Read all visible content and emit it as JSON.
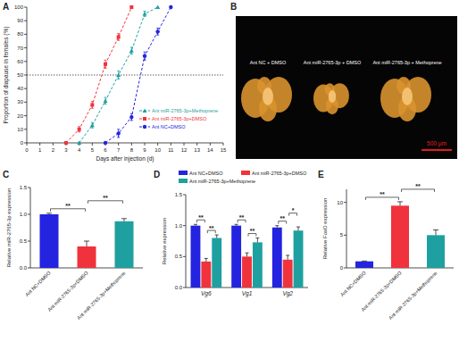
{
  "chart_data": [
    {
      "type": "line",
      "title": "A",
      "x": [
        3,
        4,
        5,
        6,
        7,
        8,
        9,
        10,
        11
      ],
      "xlim": [
        0,
        15
      ],
      "xticks": [
        0,
        1,
        2,
        3,
        4,
        5,
        6,
        7,
        8,
        9,
        10,
        11,
        12,
        13,
        14,
        15
      ],
      "ylim": [
        0,
        100
      ],
      "yticks": [
        0,
        10,
        20,
        30,
        40,
        50,
        60,
        70,
        80,
        90,
        100
      ],
      "x_label": "Days after injection (d)",
      "y_label": "Proportion of diapause in females (%)",
      "hline": 50,
      "legend": "bottom-right",
      "series": [
        {
          "name": "Ant miR-2765-3p+Methoprene",
          "color": "#1fa0a0",
          "marker": "triangle",
          "line_style": "dashed",
          "values": [
            null,
            0,
            13,
            31,
            50,
            68,
            95,
            100,
            null
          ],
          "errors": [
            null,
            0,
            2,
            2.5,
            3,
            2.5,
            2,
            0,
            null
          ]
        },
        {
          "name": "Ant miR-2765-3p+DMSO",
          "color": "#f0323c",
          "marker": "square",
          "line_style": "dashed",
          "values": [
            0,
            10,
            28,
            58,
            78,
            100,
            null,
            null,
            null
          ],
          "errors": [
            0,
            2,
            2.5,
            3,
            2.5,
            0,
            null,
            null,
            null
          ]
        },
        {
          "name": "Ant NC+DMSO",
          "color": "#2323e0",
          "marker": "circle",
          "line_style": "dashed",
          "values": [
            null,
            null,
            null,
            0,
            7,
            19,
            64,
            82,
            100
          ],
          "errors": [
            null,
            null,
            null,
            0,
            3,
            2.5,
            3,
            2.5,
            0
          ]
        }
      ]
    },
    {
      "type": "bar",
      "title": "C",
      "categories": [
        "Ant NC+DMSO",
        "Ant miR-2765-3p+DMSO",
        "Ant miR-2765-3p+Methoprene"
      ],
      "values": [
        1.0,
        0.4,
        0.87
      ],
      "errors": [
        0.02,
        0.1,
        0.05
      ],
      "colors": [
        "#2323e0",
        "#f0323c",
        "#1fa0a0"
      ],
      "ylim": [
        0,
        1.5
      ],
      "yticks": [
        {
          "value": 0,
          "label": "0.0"
        },
        {
          "value": 0.5,
          "label": "0.5"
        },
        {
          "value": 1,
          "label": "1.0"
        },
        {
          "value": 1.5,
          "label": "1.5"
        }
      ],
      "y_label": "Relative miR-2765-3p expression",
      "significance": [
        {
          "from": 0,
          "to": 1,
          "label": "**"
        },
        {
          "from": 1,
          "to": 2,
          "label": "**"
        }
      ]
    },
    {
      "type": "bar",
      "title": "D",
      "categories": [
        "Vg6",
        "Vg1",
        "Vg2"
      ],
      "series": [
        {
          "name": "Ant NC+DMSO",
          "color": "#2323e0",
          "values": [
            1.0,
            1.0,
            0.97
          ],
          "errors": [
            0.02,
            0.02,
            0.03
          ]
        },
        {
          "name": "Ant miR-2765-3p+DMSO",
          "color": "#f0323c",
          "values": [
            0.42,
            0.5,
            0.45
          ],
          "errors": [
            0.05,
            0.06,
            0.07
          ]
        },
        {
          "name": "Ant miR-2765-3p+Methoprene",
          "color": "#1fa0a0",
          "values": [
            0.8,
            0.73,
            0.92
          ],
          "errors": [
            0.05,
            0.07,
            0.06
          ]
        }
      ],
      "ylim": [
        0,
        1.5
      ],
      "yticks": [
        {
          "value": 0,
          "label": "0.0"
        },
        {
          "value": 0.5,
          "label": "0.5"
        },
        {
          "value": 1,
          "label": "1.0"
        },
        {
          "value": 1.5,
          "label": "1.5"
        }
      ],
      "y_label": "Relative expression",
      "legend": "top",
      "significance": [
        {
          "group": 0,
          "from": 0,
          "to": 1,
          "label": "**"
        },
        {
          "group": 0,
          "from": 1,
          "to": 2,
          "label": "**"
        },
        {
          "group": 1,
          "from": 0,
          "to": 1,
          "label": "**"
        },
        {
          "group": 1,
          "from": 1,
          "to": 2,
          "label": "**"
        },
        {
          "group": 2,
          "from": 0,
          "to": 1,
          "label": "**"
        },
        {
          "group": 2,
          "from": 1,
          "to": 2,
          "label": "*"
        }
      ]
    },
    {
      "type": "bar",
      "title": "E",
      "categories": [
        "Ant NC+DMSO",
        "Ant miR-2765-3p+DMSO",
        "Ant miR-2765-3p+Methoprene"
      ],
      "values": [
        1.0,
        9.5,
        5.0
      ],
      "errors": [
        0.05,
        0.6,
        0.8
      ],
      "colors": [
        "#2323e0",
        "#f0323c",
        "#1fa0a0"
      ],
      "ylim": [
        0,
        12
      ],
      "yticks": [
        0,
        5,
        10
      ],
      "y_label": "Relative FoxO expression",
      "significance": [
        {
          "from": 0,
          "to": 1,
          "label": "**"
        },
        {
          "from": 1,
          "to": 2,
          "label": "**"
        }
      ]
    }
  ],
  "image": {
    "title": "B",
    "labels": [
      "Ant NC + DMSO",
      "Ant miR-2765-3p + DMSO",
      "Ant miR-2765-3p + Methoprene"
    ],
    "scale_bar": "500 μm"
  }
}
